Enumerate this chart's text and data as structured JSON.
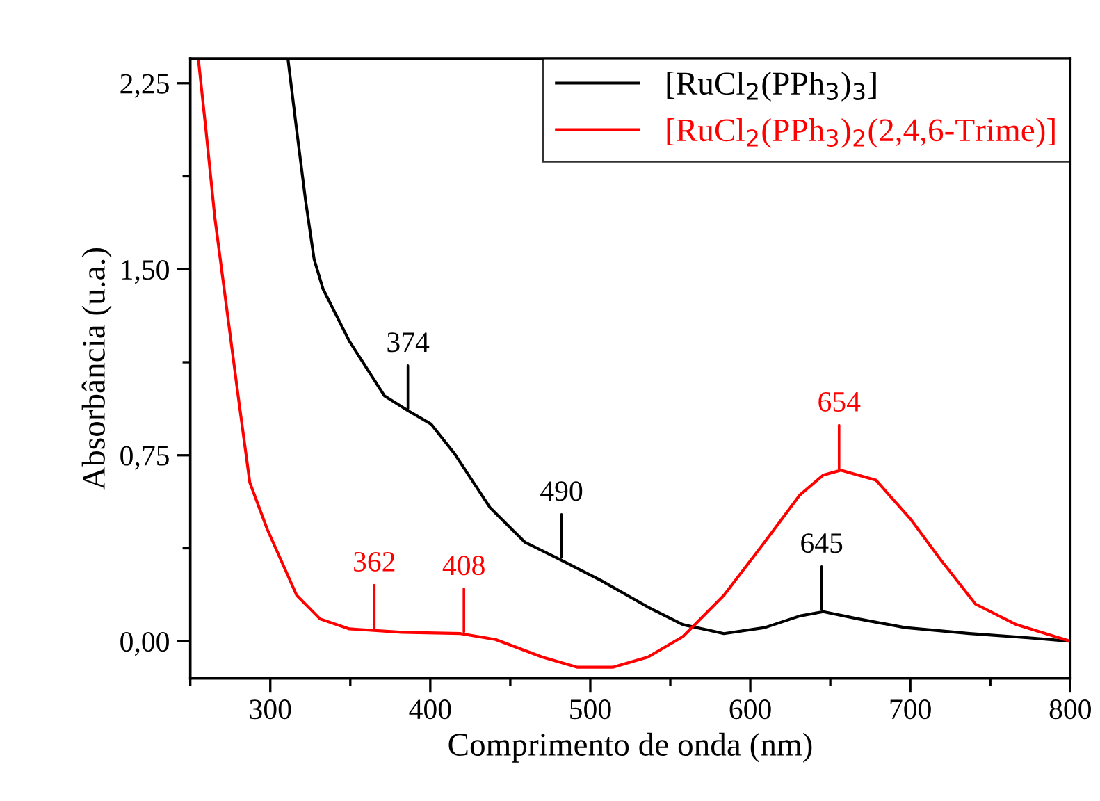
{
  "chart_data": {
    "type": "line",
    "xlabel": "Comprimento de onda (nm)",
    "ylabel": "Absorbância (u.a.)",
    "xlim": [
      250,
      800
    ],
    "xticks": [
      300,
      400,
      500,
      600,
      700,
      800
    ],
    "ylim": [
      -0.15,
      2.35
    ],
    "yticks": [
      {
        "value": 0,
        "label": "0,00"
      },
      {
        "value": 0.75,
        "label": "0,75"
      },
      {
        "value": 1.5,
        "label": "1,50"
      },
      {
        "value": 2.25,
        "label": "2,25"
      }
    ],
    "legend": "top right",
    "grid": false,
    "marker": "none",
    "line_style": "solid",
    "series": [
      {
        "name": "[RuCl$_{2}$(PPh$_{3}$)$_{3}$]",
        "color": "#000000",
        "x": [
          311,
          316.5,
          322,
          327.4,
          333,
          349.4,
          371.3,
          386,
          400.6,
          415.2,
          437.2,
          459,
          481,
          506.7,
          536,
          557.9,
          583.5,
          609,
          631,
          645.6,
          667.6,
          696.9,
          737,
          773.7,
          800
        ],
        "values": [
          2.35,
          2.06,
          1.78,
          1.54,
          1.42,
          1.21,
          0.99,
          0.93,
          0.875,
          0.756,
          0.54,
          0.4,
          0.33,
          0.245,
          0.138,
          0.067,
          0.031,
          0.055,
          0.102,
          0.119,
          0.09,
          0.055,
          0.031,
          0.014,
          0
        ]
      },
      {
        "name": "[RuCl$_{2}$(PPh$_{3}$)$_{2}$(2,4,6-Trime)]",
        "color": "#ff0000",
        "x": [
          255,
          259.8,
          265.3,
          272.6,
          279.9,
          287.2,
          298.2,
          316.5,
          331.1,
          349.4,
          382.3,
          418.9,
          440.8,
          470,
          492,
          514,
          536,
          557.9,
          583.5,
          609,
          631,
          645.6,
          656.6,
          678.5,
          700.5,
          718.8,
          740.7,
          766.3,
          800
        ],
        "values": [
          2.35,
          2.06,
          1.71,
          1.35,
          0.99,
          0.64,
          0.45,
          0.185,
          0.09,
          0.05,
          0.036,
          0.031,
          0.007,
          -0.064,
          -0.105,
          -0.105,
          -0.064,
          0.019,
          0.185,
          0.4,
          0.59,
          0.67,
          0.69,
          0.65,
          0.49,
          0.33,
          0.15,
          0.067,
          0
        ]
      }
    ],
    "annotations": [
      {
        "text": "374",
        "x": 386,
        "y": 0.93
      },
      {
        "text": "490",
        "x": 482,
        "y": 0.33
      },
      {
        "text": "645",
        "x": 644.6,
        "y": 0.12
      },
      {
        "text": "362",
        "x": 365,
        "y": 0.045
      },
      {
        "text": "408",
        "x": 421,
        "y": 0.03
      },
      {
        "text": "654",
        "x": 655.5,
        "y": 0.69
      }
    ]
  }
}
